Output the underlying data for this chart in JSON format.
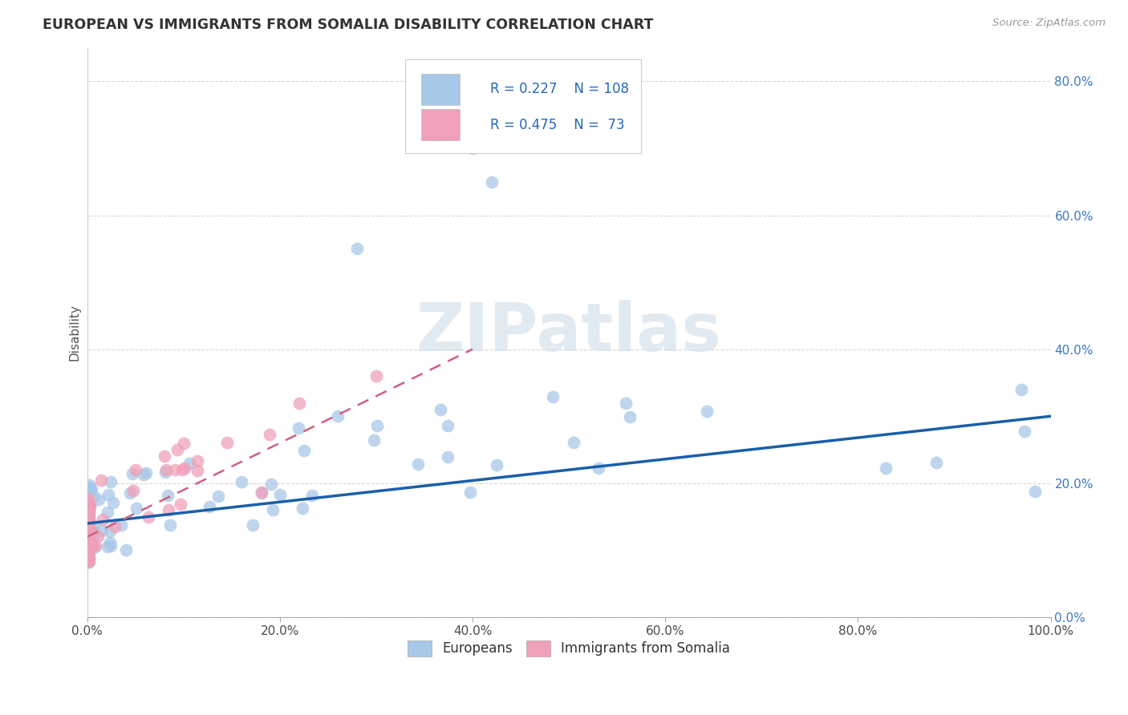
{
  "title": "EUROPEAN VS IMMIGRANTS FROM SOMALIA DISABILITY CORRELATION CHART",
  "source": "Source: ZipAtlas.com",
  "ylabel": "Disability",
  "xlim": [
    0,
    1
  ],
  "ylim": [
    0,
    0.85
  ],
  "yticks": [
    0.0,
    0.2,
    0.4,
    0.6,
    0.8
  ],
  "ytick_labels": [
    "0.0%",
    "20.0%",
    "40.0%",
    "60.0%",
    "80.0%"
  ],
  "xticks": [
    0.0,
    0.2,
    0.4,
    0.6,
    0.8,
    1.0
  ],
  "xtick_labels": [
    "0.0%",
    "20.0%",
    "40.0%",
    "60.0%",
    "80.0%",
    "100.0%"
  ],
  "european_R": 0.227,
  "european_N": 108,
  "somalia_R": 0.475,
  "somalia_N": 73,
  "dot_color_european": "#a8c8e8",
  "dot_color_somalia": "#f0a0b8",
  "line_color_european": "#1a5fa8",
  "line_color_somalia": "#d06080",
  "background_color": "#ffffff",
  "grid_color": "#cccccc",
  "watermark": "ZIPatlas",
  "legend_labels": [
    "Europeans",
    "Immigrants from Somalia"
  ],
  "eu_line_x0": 0.0,
  "eu_line_y0": 0.14,
  "eu_line_x1": 1.0,
  "eu_line_y1": 0.3,
  "so_line_x0": 0.0,
  "so_line_y0": 0.12,
  "so_line_x1": 0.4,
  "so_line_y1": 0.4
}
